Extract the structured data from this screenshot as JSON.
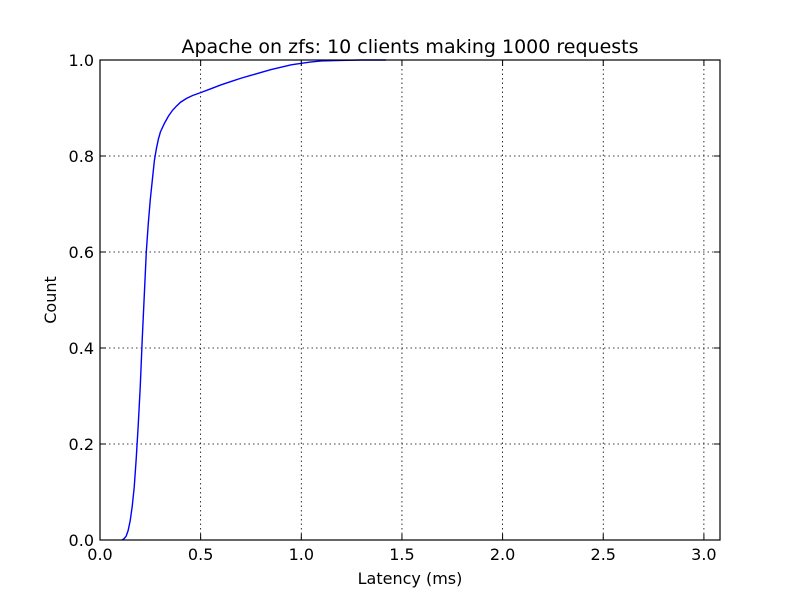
{
  "chart_data": {
    "type": "line",
    "title": "Apache on zfs: 10 clients making 1000 requests",
    "xlabel": "Latency (ms)",
    "ylabel": "Count",
    "xlim": [
      0.0,
      3.08
    ],
    "ylim": [
      0.0,
      1.0
    ],
    "x_ticks": [
      0.0,
      0.5,
      1.0,
      1.5,
      2.0,
      2.5,
      3.0
    ],
    "x_tick_labels": [
      "0.0",
      "0.5",
      "1.0",
      "1.5",
      "2.0",
      "2.5",
      "3.0"
    ],
    "y_ticks": [
      0.0,
      0.2,
      0.4,
      0.6,
      0.8,
      1.0
    ],
    "y_tick_labels": [
      "0.0",
      "0.2",
      "0.4",
      "0.6",
      "0.8",
      "1.0"
    ],
    "grid": true,
    "series": [
      {
        "color": "#0000ff",
        "x": [
          0.11,
          0.12,
          0.13,
          0.14,
          0.15,
          0.16,
          0.17,
          0.18,
          0.19,
          0.2,
          0.21,
          0.22,
          0.23,
          0.24,
          0.25,
          0.26,
          0.27,
          0.28,
          0.29,
          0.3,
          0.32,
          0.34,
          0.36,
          0.38,
          0.4,
          0.43,
          0.46,
          0.5,
          0.55,
          0.6,
          0.65,
          0.7,
          0.75,
          0.8,
          0.85,
          0.9,
          0.95,
          1.0,
          1.05,
          1.1,
          1.2,
          1.3,
          1.4,
          1.42
        ],
        "y": [
          0.0,
          0.003,
          0.008,
          0.02,
          0.04,
          0.07,
          0.11,
          0.17,
          0.24,
          0.32,
          0.42,
          0.51,
          0.6,
          0.66,
          0.71,
          0.75,
          0.79,
          0.815,
          0.835,
          0.85,
          0.868,
          0.883,
          0.895,
          0.904,
          0.912,
          0.92,
          0.926,
          0.932,
          0.94,
          0.948,
          0.955,
          0.962,
          0.968,
          0.974,
          0.98,
          0.985,
          0.99,
          0.993,
          0.996,
          0.998,
          0.999,
          1.0,
          1.0,
          1.0
        ]
      }
    ]
  }
}
